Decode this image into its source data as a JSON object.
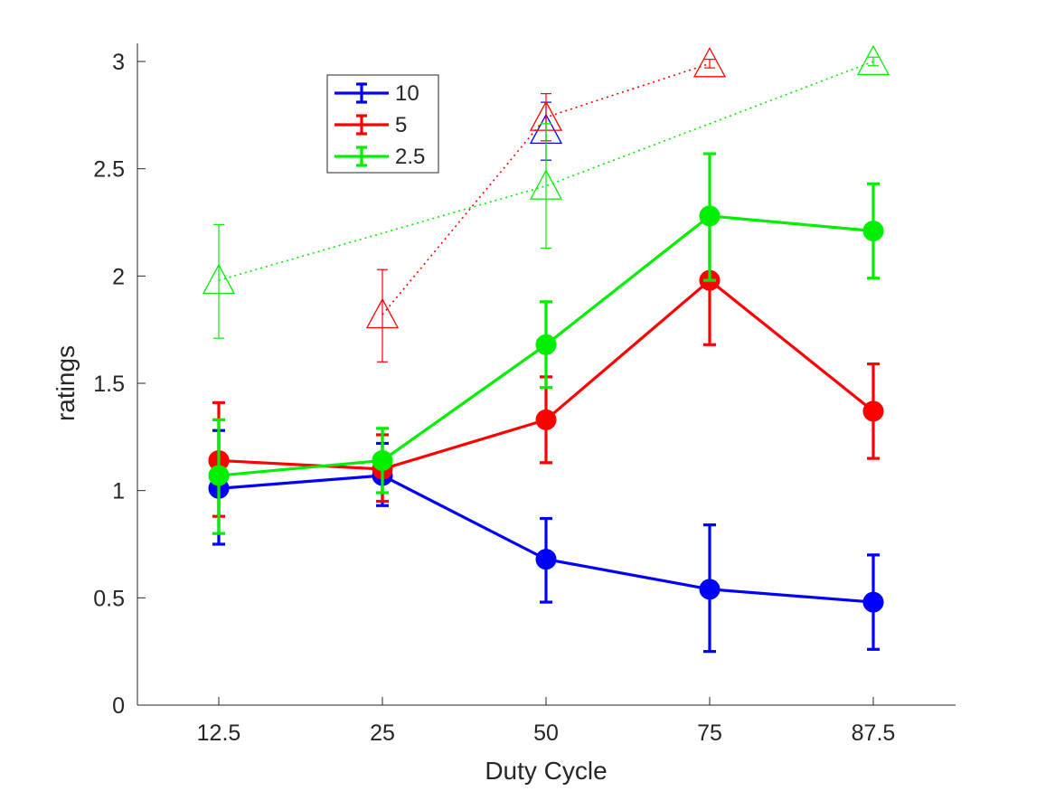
{
  "chart_data": {
    "type": "line",
    "title": "",
    "xlabel": "Duty Cycle",
    "ylabel": "ratings",
    "categories": [
      "12.5",
      "25",
      "50",
      "75",
      "87.5"
    ],
    "ylim": [
      0,
      3
    ],
    "yticks": [
      "0",
      "0.5",
      "1",
      "1.5",
      "2",
      "2.5",
      "3"
    ],
    "grid": false,
    "legend_position": "top-left",
    "series": [
      {
        "name": "10",
        "color": "#0000ff",
        "marker": "filled-circle",
        "line_style": "solid",
        "values": [
          1.01,
          1.07,
          0.68,
          0.54,
          0.48
        ],
        "error_low": [
          0.75,
          0.93,
          0.48,
          0.25,
          0.26
        ],
        "error_high": [
          1.28,
          1.22,
          0.87,
          0.84,
          0.7
        ]
      },
      {
        "name": "5",
        "color": "#ff0000",
        "marker": "filled-circle",
        "line_style": "solid",
        "values": [
          1.14,
          1.1,
          1.33,
          1.98,
          1.37
        ],
        "error_low": [
          0.88,
          0.95,
          1.13,
          1.68,
          1.15
        ],
        "error_high": [
          1.41,
          1.26,
          1.53,
          2.27,
          1.59
        ]
      },
      {
        "name": "2.5",
        "color": "#00ee00",
        "marker": "filled-circle",
        "line_style": "solid",
        "values": [
          1.07,
          1.14,
          1.68,
          2.28,
          2.21
        ],
        "error_low": [
          0.8,
          0.99,
          1.48,
          1.98,
          1.99
        ],
        "error_high": [
          1.33,
          1.29,
          1.88,
          2.57,
          2.43
        ]
      }
    ],
    "reference_series": [
      {
        "color": "#0000ff",
        "marker": "open-triangle",
        "line_style": "dotted",
        "points": [
          {
            "x": "50",
            "y": 2.68,
            "error_low": 2.54,
            "error_high": 2.81
          }
        ]
      },
      {
        "color": "#ff0000",
        "marker": "open-triangle",
        "line_style": "dotted",
        "points": [
          {
            "x": "25",
            "y": 1.82,
            "error_low": 1.6,
            "error_high": 2.03
          },
          {
            "x": "50",
            "y": 2.74,
            "error_low": 2.63,
            "error_high": 2.85
          },
          {
            "x": "75",
            "y": 2.99,
            "error_low": 2.97,
            "error_high": 3.01
          }
        ]
      },
      {
        "color": "#00ee00",
        "marker": "open-triangle",
        "line_style": "dotted",
        "points": [
          {
            "x": "12.5",
            "y": 1.98,
            "error_low": 1.71,
            "error_high": 2.24
          },
          {
            "x": "50",
            "y": 2.42,
            "error_low": 2.13,
            "error_high": 2.71
          },
          {
            "x": "87.5",
            "y": 3.0,
            "error_low": 2.98,
            "error_high": 3.02
          }
        ]
      }
    ]
  }
}
